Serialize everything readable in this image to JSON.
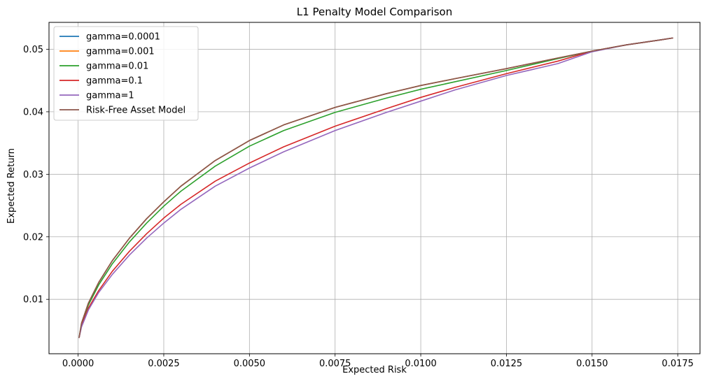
{
  "chart_data": {
    "type": "line",
    "title": "L1 Penalty Model Comparison",
    "xlabel": "Expected Risk",
    "ylabel": "Expected Return",
    "xlim": [
      -0.00085,
      0.01815
    ],
    "ylim": [
      0.0013,
      0.0543
    ],
    "xticks": [
      0.0,
      0.0025,
      0.005,
      0.0075,
      0.01,
      0.0125,
      0.015,
      0.0175
    ],
    "xtick_labels": [
      "0.0000",
      "0.0025",
      "0.0050",
      "0.0075",
      "0.0100",
      "0.0125",
      "0.0150",
      "0.0175"
    ],
    "yticks": [
      0.01,
      0.02,
      0.03,
      0.04,
      0.05
    ],
    "ytick_labels": [
      "0.01",
      "0.02",
      "0.03",
      "0.04",
      "0.05"
    ],
    "grid": true,
    "legend_position": "upper-left",
    "series": [
      {
        "name": "gamma=0.0001",
        "color": "#1f77b4",
        "x": [
          3e-05,
          0.0001,
          0.0003,
          0.0006,
          0.001,
          0.0015,
          0.002,
          0.0025,
          0.003,
          0.004,
          0.005,
          0.006,
          0.0075,
          0.009,
          0.01,
          0.011,
          0.0125,
          0.014,
          0.015,
          0.016,
          0.017,
          0.01735
        ],
        "y": [
          0.0039,
          0.0062,
          0.0094,
          0.0127,
          0.0162,
          0.0198,
          0.0229,
          0.0256,
          0.0281,
          0.0322,
          0.0354,
          0.0379,
          0.0407,
          0.0429,
          0.0442,
          0.0453,
          0.0469,
          0.0486,
          0.0497,
          0.0507,
          0.0515,
          0.0518
        ]
      },
      {
        "name": "gamma=0.001",
        "color": "#ff7f0e",
        "x": [
          3e-05,
          0.0001,
          0.0003,
          0.0006,
          0.001,
          0.0015,
          0.002,
          0.0025,
          0.003,
          0.004,
          0.005,
          0.006,
          0.0075,
          0.009,
          0.01,
          0.011,
          0.0125,
          0.014,
          0.015,
          0.016,
          0.017,
          0.01735
        ],
        "y": [
          0.0039,
          0.0062,
          0.0094,
          0.0127,
          0.0162,
          0.0198,
          0.0229,
          0.0256,
          0.0281,
          0.0322,
          0.0354,
          0.0379,
          0.0407,
          0.0429,
          0.0442,
          0.0453,
          0.0469,
          0.0486,
          0.0497,
          0.0507,
          0.0515,
          0.0518
        ]
      },
      {
        "name": "gamma=0.01",
        "color": "#2ca02c",
        "x": [
          3e-05,
          0.0001,
          0.0003,
          0.0006,
          0.001,
          0.0015,
          0.002,
          0.0025,
          0.003,
          0.004,
          0.005,
          0.006,
          0.0075,
          0.009,
          0.01,
          0.011,
          0.0125,
          0.014,
          0.015,
          0.016,
          0.017,
          0.01735
        ],
        "y": [
          0.0039,
          0.0061,
          0.0091,
          0.0123,
          0.0157,
          0.0192,
          0.0222,
          0.0249,
          0.0273,
          0.0313,
          0.0345,
          0.037,
          0.0399,
          0.0422,
          0.0436,
          0.0448,
          0.0466,
          0.0485,
          0.0497,
          0.0507,
          0.0515,
          0.0518
        ]
      },
      {
        "name": "gamma=0.1",
        "color": "#d62728",
        "x": [
          3e-05,
          0.0001,
          0.0003,
          0.0006,
          0.001,
          0.0015,
          0.002,
          0.0025,
          0.003,
          0.004,
          0.005,
          0.006,
          0.0075,
          0.009,
          0.01,
          0.011,
          0.0125,
          0.014,
          0.015,
          0.016,
          0.017,
          0.01735
        ],
        "y": [
          0.0039,
          0.0058,
          0.0086,
          0.0114,
          0.0145,
          0.0177,
          0.0205,
          0.023,
          0.0252,
          0.0289,
          0.0318,
          0.0344,
          0.0377,
          0.0405,
          0.0423,
          0.0439,
          0.0461,
          0.0481,
          0.0497,
          0.0507,
          0.0515,
          0.0518
        ]
      },
      {
        "name": "gamma=1",
        "color": "#9467bd",
        "x": [
          3e-05,
          0.0001,
          0.0003,
          0.0006,
          0.001,
          0.0015,
          0.002,
          0.0025,
          0.003,
          0.004,
          0.005,
          0.006,
          0.0075,
          0.009,
          0.01,
          0.011,
          0.0125,
          0.014,
          0.015,
          0.016,
          0.017,
          0.01735
        ],
        "y": [
          0.0039,
          0.0056,
          0.0083,
          0.0111,
          0.014,
          0.0171,
          0.0198,
          0.0222,
          0.0244,
          0.0281,
          0.031,
          0.0336,
          0.037,
          0.0399,
          0.0417,
          0.0435,
          0.0458,
          0.0477,
          0.0496,
          0.0507,
          0.0515,
          0.0518
        ]
      },
      {
        "name": "Risk-Free Asset Model",
        "color": "#8c564b",
        "x": [
          3e-05,
          0.0001,
          0.0003,
          0.0006,
          0.001,
          0.0015,
          0.002,
          0.0025,
          0.003,
          0.004,
          0.005,
          0.006,
          0.0075,
          0.009,
          0.01,
          0.011,
          0.0125,
          0.014,
          0.015,
          0.016,
          0.017,
          0.01735
        ],
        "y": [
          0.0039,
          0.0062,
          0.0094,
          0.0127,
          0.0162,
          0.0198,
          0.0229,
          0.0256,
          0.0281,
          0.0322,
          0.0354,
          0.0379,
          0.0407,
          0.0429,
          0.0442,
          0.0453,
          0.0469,
          0.0486,
          0.0497,
          0.0507,
          0.0515,
          0.0518
        ]
      }
    ]
  }
}
